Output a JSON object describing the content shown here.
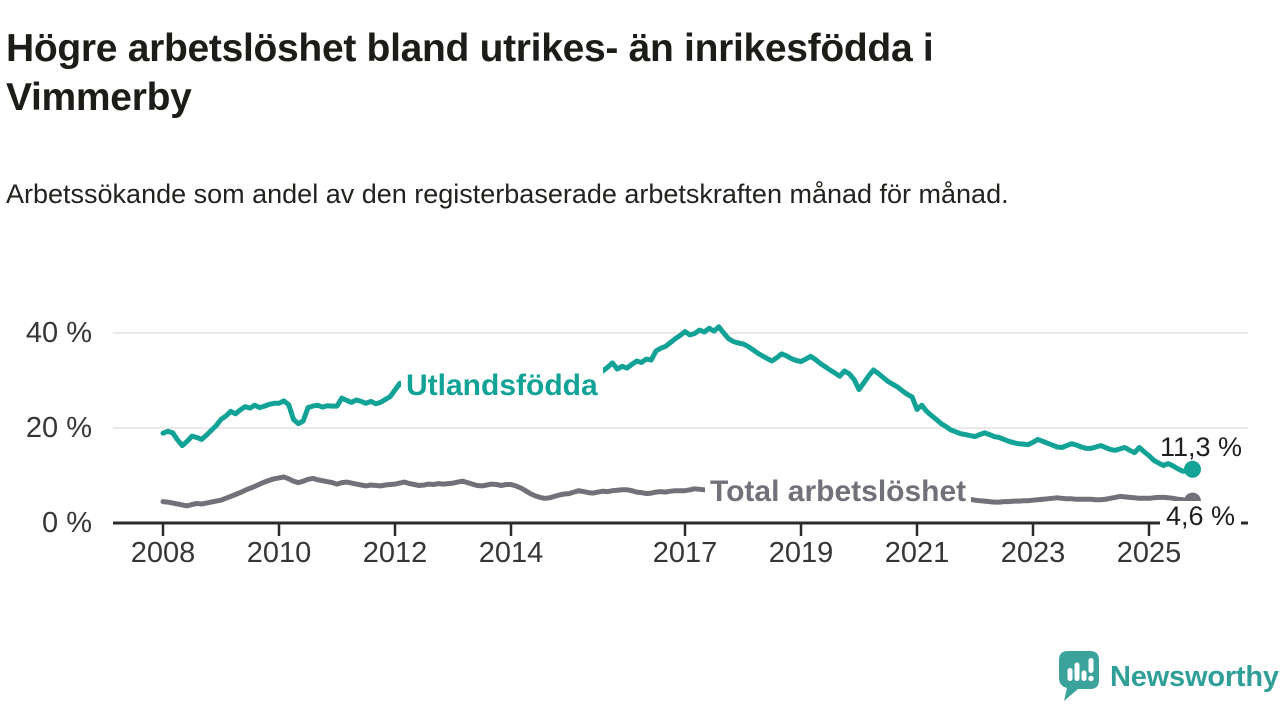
{
  "header": {
    "title": "Högre arbetslöshet bland utrikes- än inrikesfödda i Vimmerby",
    "subtitle": "Arbetssökande som andel av den registerbaserade arbetskraften månad för månad."
  },
  "footer": {
    "brand": "Newsworthy",
    "logo_icon": "bar-chart-speech-bubble-icon"
  },
  "colors": {
    "accent_teal": "#12a296",
    "series_gray": "#74707a",
    "axis": "#2b2b2b",
    "gridline": "#e3e3e3",
    "tick_text": "#363636",
    "brand_teal": "#2f9f98"
  },
  "chart_data": {
    "type": "line",
    "title": "Högre arbetslöshet bland utrikes- än inrikesfödda i Vimmerby",
    "subtitle": "Arbetssökande som andel av den registerbaserade arbetskraften månad för månad.",
    "xlabel": "",
    "ylabel": "",
    "grid": "horizontal",
    "legend_position": "inline-labels",
    "frequency": "monthly",
    "x_start": "2008-01",
    "x_end": "2025-10",
    "ylim": [
      0,
      43
    ],
    "y_tick_labels": [
      "0 %",
      "20 %",
      "40 %"
    ],
    "y_tick_values": [
      0,
      20,
      40
    ],
    "x_tick_labels": [
      "2008",
      "2010",
      "2012",
      "2014",
      "2017",
      "2019",
      "2021",
      "2023",
      "2025"
    ],
    "x_tick_years": [
      2008,
      2010,
      2012,
      2014,
      2017,
      2019,
      2021,
      2023,
      2025
    ],
    "series": [
      {
        "name": "Utlandsfödda",
        "color": "#12a296",
        "end_label": "11,3 %",
        "last_value": 11.3,
        "values": [
          18.9,
          19.3,
          19.0,
          17.5,
          16.3,
          17.2,
          18.3,
          18.0,
          17.6,
          18.5,
          19.5,
          20.5,
          21.8,
          22.5,
          23.5,
          23.0,
          23.8,
          24.5,
          24.2,
          24.8,
          24.3,
          24.6,
          25.0,
          25.2,
          25.2,
          25.7,
          24.9,
          21.8,
          20.9,
          21.5,
          24.3,
          24.6,
          24.8,
          24.4,
          24.7,
          24.6,
          24.6,
          26.3,
          25.8,
          25.4,
          25.9,
          25.6,
          25.2,
          25.6,
          25.1,
          25.4,
          26.0,
          26.6,
          28.0,
          29.4,
          28.6,
          28.8,
          29.2,
          28.9,
          29.3,
          29.0,
          29.4,
          29.6,
          29.3,
          29.7,
          29.5,
          29.8,
          30.1,
          29.7,
          30.0,
          30.3,
          29.9,
          30.2,
          30.0,
          30.4,
          30.1,
          30.5,
          30.2,
          30.6,
          30.3,
          30.7,
          30.4,
          30.8,
          30.5,
          30.9,
          30.6,
          31.0,
          30.8,
          31.1,
          30.9,
          31.2,
          31.0,
          31.3,
          31.1,
          31.4,
          31.6,
          32.0,
          32.8,
          33.7,
          32.4,
          33.0,
          32.6,
          33.4,
          34.1,
          33.8,
          34.5,
          34.3,
          36.2,
          36.8,
          37.2,
          38.0,
          38.8,
          39.5,
          40.3,
          39.6,
          39.9,
          40.6,
          40.2,
          41.0,
          40.4,
          41.3,
          40.0,
          38.8,
          38.2,
          37.9,
          37.7,
          37.2,
          36.5,
          35.8,
          35.2,
          34.6,
          34.1,
          34.8,
          35.6,
          35.2,
          34.6,
          34.2,
          34.0,
          34.5,
          35.1,
          34.4,
          33.6,
          32.9,
          32.2,
          31.6,
          30.9,
          32.0,
          31.4,
          30.2,
          28.1,
          29.5,
          31.0,
          32.2,
          31.5,
          30.6,
          29.8,
          29.2,
          28.6,
          27.8,
          27.1,
          26.5,
          23.9,
          24.8,
          23.5,
          22.6,
          21.8,
          20.9,
          20.3,
          19.6,
          19.2,
          18.8,
          18.6,
          18.4,
          18.2,
          18.6,
          19.0,
          18.6,
          18.2,
          18.0,
          17.6,
          17.2,
          16.9,
          16.7,
          16.6,
          16.5,
          17.0,
          17.6,
          17.2,
          16.8,
          16.4,
          16.0,
          15.9,
          16.3,
          16.7,
          16.4,
          16.0,
          15.7,
          15.7,
          16.0,
          16.3,
          15.9,
          15.5,
          15.3,
          15.6,
          15.9,
          15.3,
          14.8,
          15.9,
          15.0,
          14.2,
          13.2,
          12.6,
          12.1,
          12.5,
          12.0,
          11.4,
          10.9,
          11.0,
          11.3
        ]
      },
      {
        "name": "Total arbetslöshet",
        "color": "#74707a",
        "end_label": "4,6 %",
        "last_value": 4.6,
        "values": [
          4.5,
          4.4,
          4.2,
          4.0,
          3.8,
          3.6,
          3.9,
          4.1,
          4.0,
          4.2,
          4.4,
          4.6,
          4.8,
          5.2,
          5.6,
          6.0,
          6.4,
          6.9,
          7.3,
          7.7,
          8.2,
          8.6,
          9.0,
          9.3,
          9.5,
          9.7,
          9.3,
          8.8,
          8.5,
          8.8,
          9.2,
          9.4,
          9.1,
          8.9,
          8.7,
          8.5,
          8.2,
          8.5,
          8.6,
          8.4,
          8.2,
          8.0,
          7.8,
          8.0,
          7.9,
          7.8,
          8.0,
          8.1,
          8.2,
          8.4,
          8.6,
          8.3,
          8.1,
          7.9,
          8.0,
          8.2,
          8.1,
          8.3,
          8.2,
          8.3,
          8.4,
          8.6,
          8.8,
          8.5,
          8.2,
          7.9,
          7.8,
          8.0,
          8.2,
          8.1,
          7.9,
          8.1,
          8.1,
          7.8,
          7.4,
          6.8,
          6.2,
          5.7,
          5.4,
          5.2,
          5.3,
          5.6,
          5.9,
          6.1,
          6.2,
          6.5,
          6.8,
          6.6,
          6.4,
          6.3,
          6.5,
          6.7,
          6.6,
          6.8,
          6.9,
          7.0,
          7.0,
          6.8,
          6.5,
          6.4,
          6.2,
          6.3,
          6.5,
          6.6,
          6.5,
          6.7,
          6.8,
          6.8,
          6.8,
          7.0,
          7.2,
          7.1,
          7.0,
          7.1,
          7.2,
          7.3,
          7.2,
          7.1,
          7.0,
          7.0,
          7.0,
          6.9,
          6.8,
          6.7,
          6.6,
          6.5,
          6.4,
          6.4,
          6.3,
          6.3,
          6.2,
          6.2,
          6.2,
          6.1,
          6.1,
          6.0,
          6.0,
          6.0,
          6.1,
          6.1,
          6.2,
          6.2,
          6.3,
          6.4,
          6.5,
          6.6,
          6.9,
          7.3,
          7.5,
          7.4,
          7.3,
          7.2,
          7.1,
          7.0,
          6.9,
          6.7,
          6.5,
          6.3,
          6.1,
          5.9,
          5.7,
          5.6,
          5.5,
          5.4,
          5.3,
          5.2,
          5.1,
          5.0,
          4.8,
          4.7,
          4.6,
          4.5,
          4.4,
          4.4,
          4.5,
          4.5,
          4.6,
          4.6,
          4.7,
          4.7,
          4.8,
          4.9,
          5.0,
          5.1,
          5.2,
          5.3,
          5.2,
          5.1,
          5.1,
          5.0,
          5.0,
          5.0,
          5.0,
          4.9,
          4.9,
          5.0,
          5.2,
          5.4,
          5.6,
          5.5,
          5.4,
          5.3,
          5.2,
          5.2,
          5.2,
          5.3,
          5.4,
          5.4,
          5.3,
          5.2,
          5.0,
          4.9,
          4.7,
          4.6
        ]
      }
    ]
  }
}
